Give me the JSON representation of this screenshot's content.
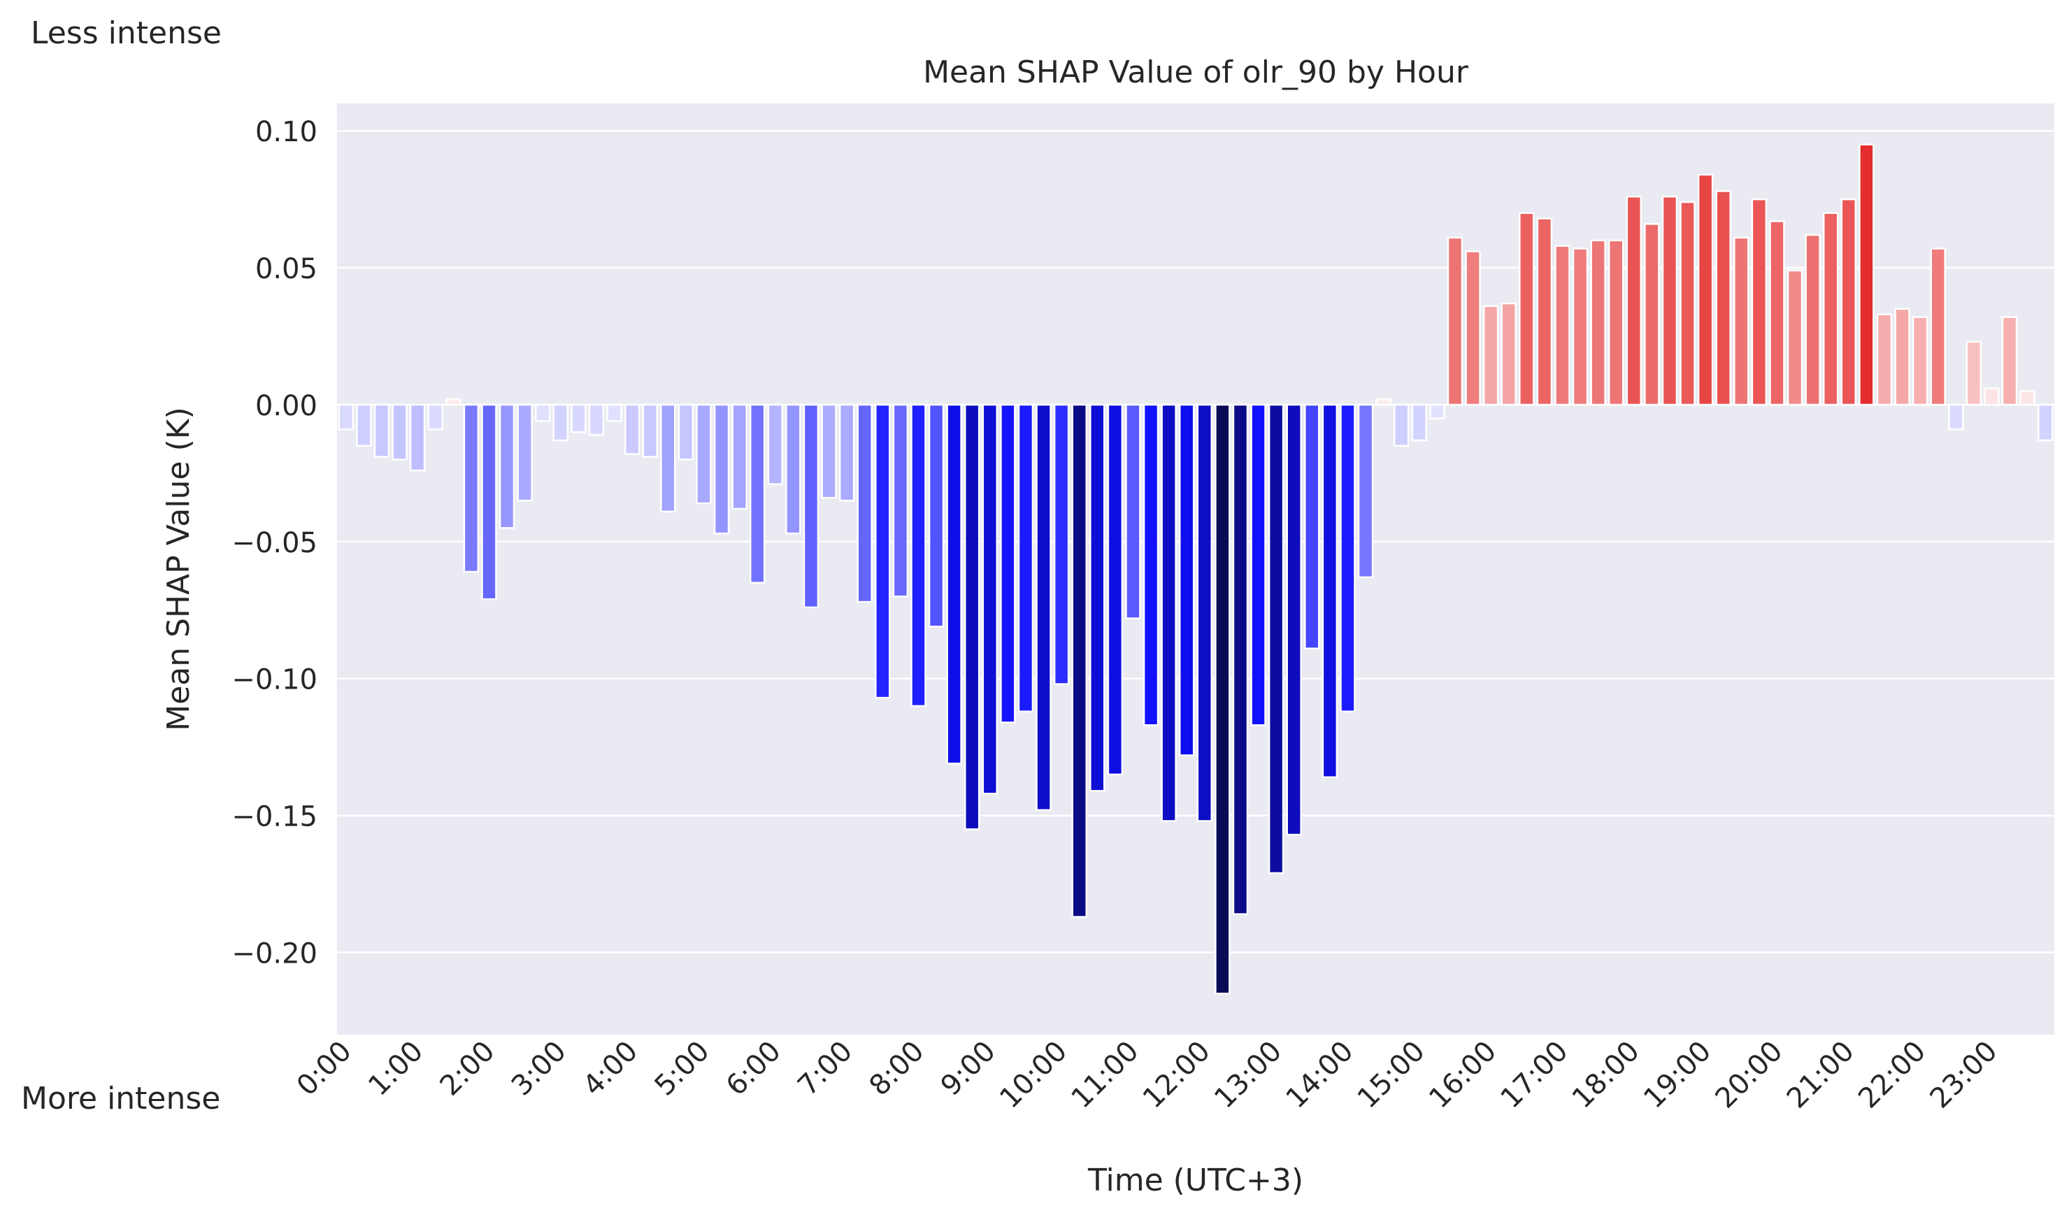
{
  "chart_data": {
    "type": "bar",
    "title": "Mean SHAP Value of olr_90 by Hour",
    "xlabel": "Time (UTC+3)",
    "ylabel": "Mean SHAP Value (K)",
    "ylim": [
      -0.23,
      0.11
    ],
    "yticks": [
      0.1,
      0.05,
      0.0,
      -0.05,
      -0.1,
      -0.15,
      -0.2
    ],
    "ytick_labels": [
      "0.10",
      "0.05",
      "0.00",
      "−0.05",
      "−0.10",
      "−0.15",
      "−0.20"
    ],
    "xtick_labels": [
      "0:00",
      "1:00",
      "2:00",
      "3:00",
      "4:00",
      "5:00",
      "6:00",
      "7:00",
      "8:00",
      "9:00",
      "10:00",
      "11:00",
      "12:00",
      "13:00",
      "14:00",
      "15:00",
      "16:00",
      "17:00",
      "18:00",
      "19:00",
      "20:00",
      "21:00",
      "22:00",
      "23:00"
    ],
    "bars_per_hour": 4,
    "grid": true,
    "values": [
      -0.009,
      -0.015,
      -0.019,
      -0.02,
      -0.024,
      -0.009,
      0.002,
      -0.061,
      -0.071,
      -0.045,
      -0.035,
      -0.006,
      -0.013,
      -0.01,
      -0.011,
      -0.006,
      -0.018,
      -0.019,
      -0.039,
      -0.02,
      -0.036,
      -0.047,
      -0.038,
      -0.065,
      -0.029,
      -0.047,
      -0.074,
      -0.034,
      -0.035,
      -0.072,
      -0.107,
      -0.07,
      -0.11,
      -0.081,
      -0.131,
      -0.155,
      -0.142,
      -0.116,
      -0.112,
      -0.148,
      -0.102,
      -0.187,
      -0.141,
      -0.135,
      -0.078,
      -0.117,
      -0.152,
      -0.128,
      -0.152,
      -0.215,
      -0.186,
      -0.117,
      -0.171,
      -0.157,
      -0.089,
      -0.136,
      -0.112,
      -0.063,
      0.002,
      -0.015,
      -0.013,
      -0.005,
      0.061,
      0.056,
      0.036,
      0.037,
      0.07,
      0.068,
      0.058,
      0.057,
      0.06,
      0.06,
      0.076,
      0.066,
      0.076,
      0.074,
      0.084,
      0.078,
      0.061,
      0.075,
      0.067,
      0.049,
      0.062,
      0.07,
      0.075,
      0.095,
      0.033,
      0.035,
      0.032,
      0.057,
      -0.009,
      0.023,
      0.006,
      0.032,
      0.005,
      -0.013
    ]
  },
  "labels": {
    "less_intense": "Less intense",
    "more_intense": "More intense"
  }
}
